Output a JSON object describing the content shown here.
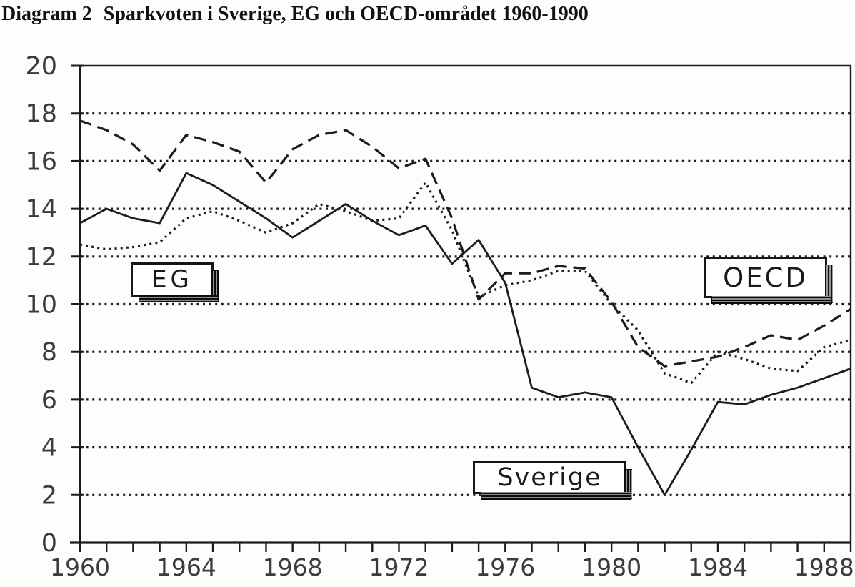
{
  "header": {
    "title_prefix": "Diagram 2",
    "title_text": "Sparkvoten i Sverige, EG och OECD-området 1960-1990"
  },
  "colors": {
    "ink": "#1c1c1c",
    "tick_label": "#3b3b3b",
    "paper": "#fdfdfb"
  },
  "chart_data": {
    "type": "line",
    "title": "Diagram 2 Sparkvoten i Sverige, EG och OECD-området 1960-1990",
    "xlabel": "",
    "ylabel": "",
    "ylim": [
      0,
      20
    ],
    "y_tick_step": 2,
    "y_tick_labels": [
      "0",
      "2",
      "4",
      "6",
      "8",
      "10",
      "12",
      "14",
      "16",
      "18",
      "20"
    ],
    "x": [
      1960,
      1961,
      1962,
      1963,
      1964,
      1965,
      1966,
      1967,
      1968,
      1969,
      1970,
      1971,
      1972,
      1973,
      1974,
      1975,
      1976,
      1977,
      1978,
      1979,
      1980,
      1981,
      1982,
      1983,
      1984,
      1985,
      1986,
      1987,
      1988,
      1989
    ],
    "x_tick_labels": [
      "1960",
      "1964",
      "1968",
      "1972",
      "1976",
      "1980",
      "1984",
      "1988"
    ],
    "grid": "dotted horizontal gridlines at 2,4,6,8,10,12,14,16,18",
    "legend_position": "inline label boxes on plot",
    "series": [
      {
        "name": "EG",
        "style": "dashed",
        "values": [
          17.7,
          17.3,
          16.7,
          15.6,
          17.1,
          16.8,
          16.4,
          15.1,
          16.5,
          17.1,
          17.3,
          16.6,
          15.7,
          16.1,
          13.6,
          10.2,
          11.3,
          11.3,
          11.6,
          11.5,
          10.1,
          8.2,
          7.4,
          7.6,
          7.8,
          8.2,
          8.7,
          8.5,
          9.1,
          9.8
        ]
      },
      {
        "name": "OECD",
        "style": "dotted",
        "values": [
          12.5,
          12.3,
          12.4,
          12.6,
          13.6,
          13.9,
          13.5,
          13.0,
          13.4,
          14.2,
          13.9,
          13.5,
          13.6,
          15.1,
          13.1,
          10.3,
          10.8,
          11.0,
          11.4,
          11.4,
          10.0,
          8.9,
          7.1,
          6.7,
          8.0,
          7.7,
          7.3,
          7.2,
          8.2,
          8.5
        ]
      },
      {
        "name": "Sverige",
        "style": "solid",
        "values": [
          13.4,
          14.0,
          13.6,
          13.4,
          15.5,
          15.0,
          14.3,
          13.6,
          12.8,
          13.5,
          14.2,
          13.5,
          12.9,
          13.3,
          11.7,
          12.7,
          10.9,
          6.5,
          6.1,
          6.3,
          6.1,
          4.0,
          2.0,
          3.9,
          5.9,
          5.8,
          6.2,
          6.5,
          6.9,
          7.3
        ]
      }
    ]
  }
}
